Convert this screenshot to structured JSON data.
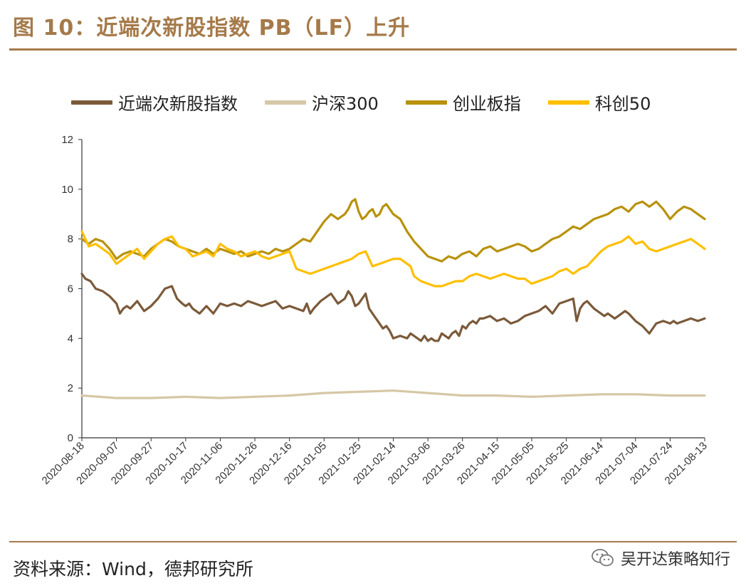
{
  "figure": {
    "title": "图 10：近端次新股指数 PB（LF）上升",
    "source": "资料来源：Wind，德邦研究所",
    "watermark": "吴开达策略知行"
  },
  "chart_data": {
    "type": "line",
    "title": "",
    "xlabel": "",
    "ylabel": "",
    "ylim": [
      0,
      12
    ],
    "yticks": [
      0,
      2,
      4,
      6,
      8,
      10,
      12
    ],
    "x_tick_labels": [
      "2020-08-18",
      "2020-09-07",
      "2020-09-27",
      "2020-10-17",
      "2020-11-06",
      "2020-11-26",
      "2020-12-16",
      "2021-01-05",
      "2021-01-25",
      "2021-02-14",
      "2021-03-06",
      "2021-03-26",
      "2021-04-15",
      "2021-05-05",
      "2021-05-25",
      "2021-06-14",
      "2021-07-04",
      "2021-07-24",
      "2021-08-13"
    ],
    "x_tick_days": [
      0,
      20,
      40,
      60,
      80,
      100,
      120,
      140,
      160,
      180,
      200,
      220,
      240,
      260,
      280,
      300,
      320,
      340,
      360
    ],
    "x_range_days": [
      0,
      360
    ],
    "x_unit": "days since 2020-08-18",
    "legend_position": "top",
    "series": [
      {
        "name": "近端次新股指数",
        "color": "#7b5a3a",
        "x": [
          0,
          2,
          5,
          8,
          12,
          16,
          20,
          22,
          24,
          26,
          28,
          32,
          36,
          40,
          44,
          48,
          52,
          55,
          58,
          60,
          62,
          64,
          68,
          72,
          76,
          80,
          84,
          88,
          92,
          96,
          100,
          104,
          108,
          112,
          116,
          120,
          124,
          128,
          130,
          132,
          134,
          138,
          142,
          144,
          146,
          148,
          150,
          152,
          154,
          156,
          158,
          160,
          162,
          164,
          166,
          168,
          170,
          172,
          174,
          176,
          178,
          180,
          184,
          188,
          190,
          194,
          196,
          198,
          200,
          202,
          204,
          206,
          208,
          210,
          212,
          214,
          216,
          218,
          220,
          222,
          224,
          226,
          228,
          230,
          232,
          236,
          240,
          244,
          248,
          252,
          256,
          260,
          264,
          268,
          272,
          276,
          280,
          284,
          286,
          288,
          290,
          292,
          296,
          300,
          302,
          304,
          306,
          308,
          310,
          312,
          314,
          316,
          320,
          324,
          328,
          332,
          336,
          340,
          342,
          344,
          348,
          352,
          356,
          360
        ],
        "values": [
          6.6,
          6.4,
          6.3,
          6.0,
          5.9,
          5.7,
          5.4,
          5.0,
          5.2,
          5.3,
          5.2,
          5.5,
          5.1,
          5.3,
          5.6,
          6.0,
          6.1,
          5.6,
          5.4,
          5.3,
          5.4,
          5.2,
          5.0,
          5.3,
          5.0,
          5.4,
          5.3,
          5.4,
          5.3,
          5.5,
          5.4,
          5.3,
          5.4,
          5.5,
          5.2,
          5.3,
          5.2,
          5.1,
          5.4,
          5.0,
          5.2,
          5.5,
          5.7,
          5.8,
          5.6,
          5.4,
          5.5,
          5.6,
          5.9,
          5.7,
          5.3,
          5.4,
          5.6,
          5.8,
          5.2,
          5.0,
          4.8,
          4.6,
          4.4,
          4.5,
          4.3,
          4.0,
          4.1,
          4.0,
          4.2,
          4.0,
          3.9,
          4.1,
          3.9,
          4.0,
          3.9,
          3.9,
          4.2,
          4.1,
          4.0,
          4.2,
          4.3,
          4.1,
          4.5,
          4.4,
          4.6,
          4.7,
          4.6,
          4.8,
          4.8,
          4.9,
          4.7,
          4.8,
          4.6,
          4.7,
          4.9,
          5.0,
          5.1,
          5.3,
          5.0,
          5.4,
          5.5,
          5.6,
          4.7,
          5.2,
          5.4,
          5.5,
          5.2,
          5.0,
          4.9,
          5.0,
          4.9,
          4.8,
          4.9,
          5.0,
          5.1,
          5.0,
          4.7,
          4.5,
          4.2,
          4.6,
          4.7,
          4.6,
          4.7,
          4.6,
          4.7,
          4.8,
          4.7,
          4.8
        ]
      },
      {
        "name": "沪深300",
        "color": "#d6c8a6",
        "x": [
          0,
          20,
          40,
          60,
          80,
          100,
          120,
          140,
          160,
          180,
          200,
          220,
          240,
          260,
          280,
          300,
          320,
          340,
          360
        ],
        "values": [
          1.7,
          1.6,
          1.6,
          1.65,
          1.6,
          1.65,
          1.7,
          1.8,
          1.85,
          1.9,
          1.8,
          1.7,
          1.7,
          1.65,
          1.7,
          1.75,
          1.75,
          1.7,
          1.7
        ]
      },
      {
        "name": "创业板指",
        "color": "#b8920c",
        "x": [
          0,
          4,
          8,
          12,
          16,
          20,
          24,
          28,
          32,
          36,
          40,
          44,
          48,
          52,
          56,
          60,
          64,
          68,
          72,
          76,
          80,
          84,
          88,
          92,
          96,
          100,
          104,
          108,
          112,
          116,
          120,
          124,
          128,
          132,
          136,
          140,
          144,
          148,
          152,
          154,
          156,
          158,
          160,
          162,
          164,
          166,
          168,
          170,
          172,
          174,
          176,
          178,
          180,
          184,
          188,
          192,
          196,
          200,
          204,
          208,
          212,
          216,
          220,
          224,
          228,
          232,
          236,
          240,
          244,
          248,
          252,
          256,
          260,
          264,
          268,
          272,
          276,
          280,
          284,
          288,
          292,
          296,
          300,
          304,
          308,
          312,
          316,
          320,
          324,
          328,
          332,
          336,
          340,
          344,
          348,
          352,
          356,
          360
        ],
        "values": [
          8.0,
          7.8,
          8.0,
          7.9,
          7.6,
          7.2,
          7.4,
          7.5,
          7.4,
          7.3,
          7.6,
          7.8,
          8.0,
          7.9,
          7.7,
          7.6,
          7.5,
          7.4,
          7.6,
          7.4,
          7.6,
          7.5,
          7.4,
          7.5,
          7.3,
          7.4,
          7.5,
          7.4,
          7.6,
          7.5,
          7.6,
          7.8,
          8.0,
          7.9,
          8.3,
          8.7,
          9.0,
          8.8,
          9.0,
          9.2,
          9.5,
          9.6,
          9.1,
          8.8,
          8.9,
          9.1,
          9.2,
          8.9,
          9.0,
          9.3,
          9.4,
          9.2,
          9.0,
          8.8,
          8.3,
          7.9,
          7.6,
          7.3,
          7.2,
          7.1,
          7.3,
          7.2,
          7.4,
          7.5,
          7.3,
          7.6,
          7.7,
          7.5,
          7.6,
          7.7,
          7.8,
          7.7,
          7.5,
          7.6,
          7.8,
          8.0,
          8.1,
          8.3,
          8.5,
          8.4,
          8.6,
          8.8,
          8.9,
          9.0,
          9.2,
          9.3,
          9.1,
          9.4,
          9.5,
          9.3,
          9.5,
          9.2,
          8.8,
          9.1,
          9.3,
          9.2,
          9.0,
          8.8
        ]
      },
      {
        "name": "科创50",
        "color": "#ffbf00",
        "x": [
          0,
          4,
          8,
          12,
          16,
          20,
          24,
          28,
          32,
          36,
          40,
          44,
          48,
          52,
          56,
          60,
          64,
          68,
          72,
          76,
          80,
          84,
          88,
          92,
          96,
          100,
          104,
          108,
          112,
          116,
          120,
          124,
          128,
          132,
          136,
          140,
          144,
          148,
          152,
          156,
          160,
          164,
          168,
          172,
          176,
          180,
          184,
          188,
          190,
          192,
          196,
          200,
          204,
          208,
          212,
          216,
          220,
          224,
          228,
          232,
          236,
          240,
          244,
          248,
          252,
          256,
          260,
          264,
          268,
          272,
          276,
          280,
          284,
          288,
          292,
          296,
          300,
          304,
          308,
          312,
          316,
          320,
          324,
          328,
          332,
          336,
          340,
          344,
          348,
          352,
          356,
          360
        ],
        "values": [
          8.3,
          7.7,
          7.8,
          7.6,
          7.4,
          7.0,
          7.2,
          7.4,
          7.6,
          7.2,
          7.5,
          7.8,
          8.0,
          8.1,
          7.7,
          7.6,
          7.3,
          7.4,
          7.5,
          7.3,
          7.8,
          7.6,
          7.5,
          7.3,
          7.4,
          7.5,
          7.3,
          7.2,
          7.3,
          7.4,
          7.5,
          6.8,
          6.7,
          6.6,
          6.7,
          6.8,
          6.9,
          7.0,
          7.1,
          7.2,
          7.4,
          7.5,
          6.9,
          7.0,
          7.1,
          7.2,
          7.2,
          7.0,
          6.9,
          6.5,
          6.3,
          6.2,
          6.1,
          6.1,
          6.2,
          6.3,
          6.3,
          6.5,
          6.6,
          6.5,
          6.4,
          6.5,
          6.6,
          6.5,
          6.4,
          6.4,
          6.2,
          6.3,
          6.4,
          6.5,
          6.7,
          6.8,
          6.6,
          6.8,
          6.9,
          7.2,
          7.5,
          7.7,
          7.8,
          7.9,
          8.1,
          7.8,
          7.9,
          7.6,
          7.5,
          7.6,
          7.7,
          7.8,
          7.9,
          8.0,
          7.8,
          7.6
        ]
      }
    ]
  }
}
